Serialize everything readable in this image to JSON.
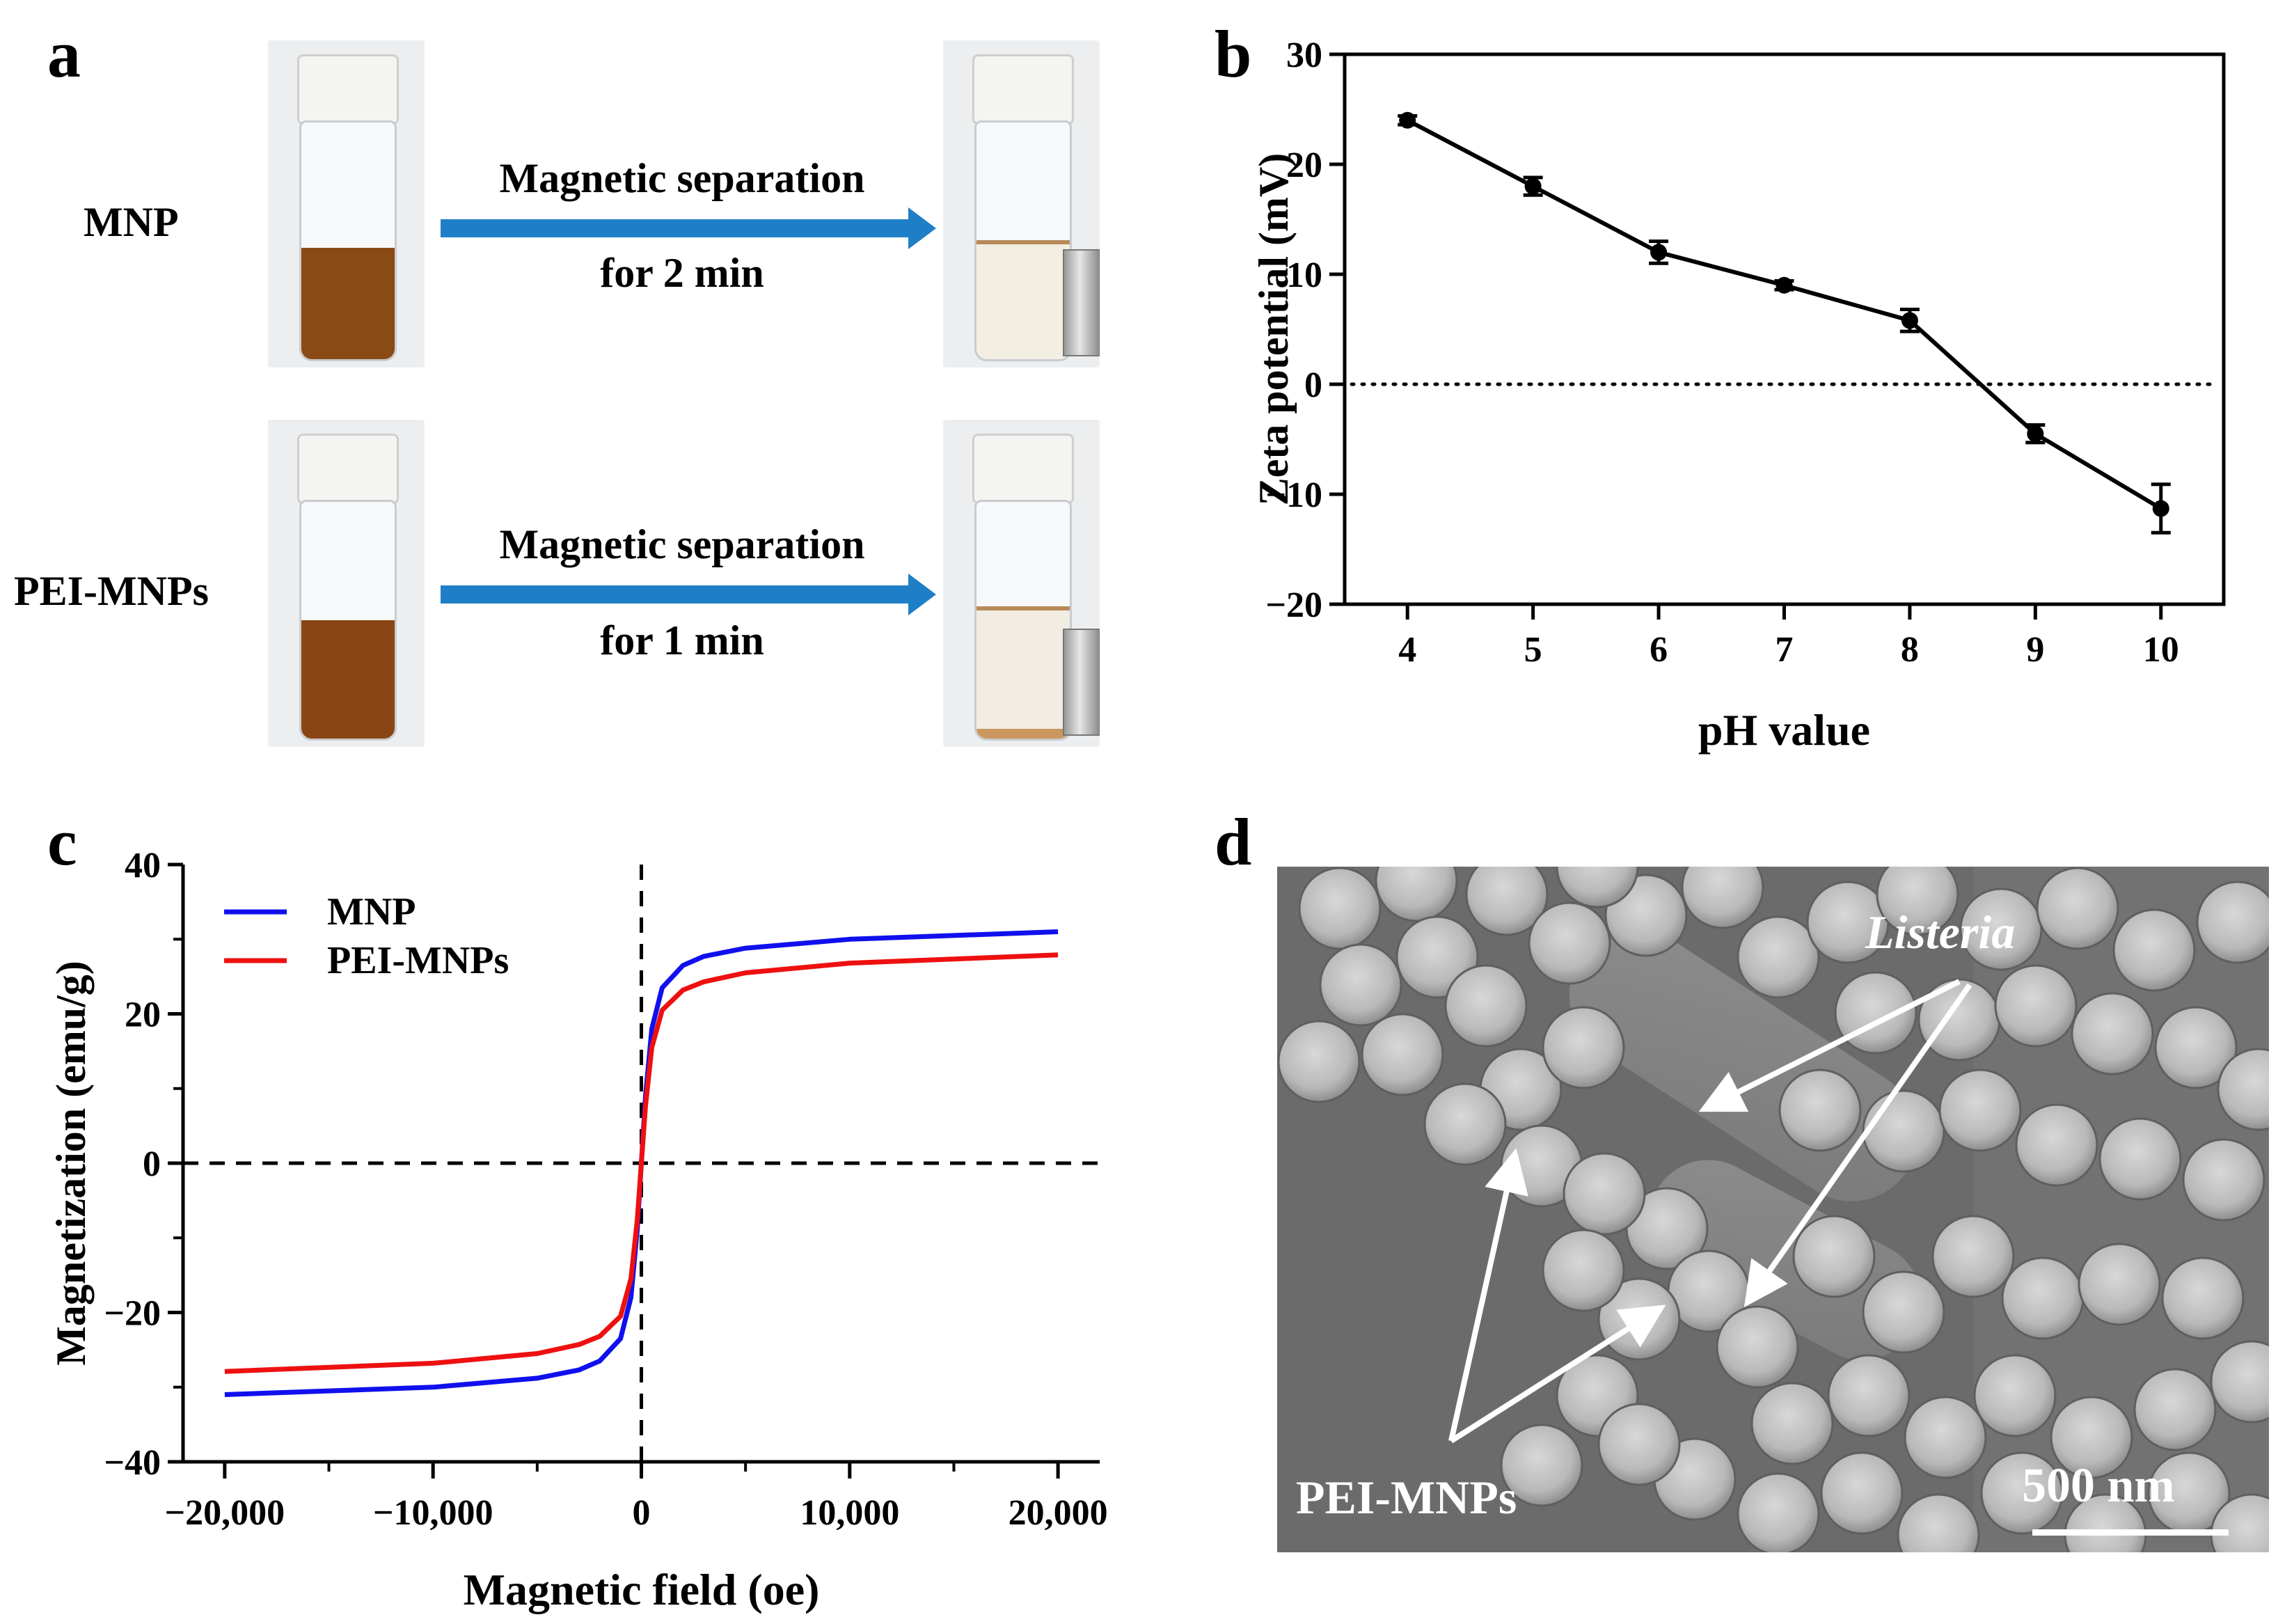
{
  "panels": {
    "a": {
      "letter": "a",
      "rows": [
        {
          "sample": "MNP",
          "step": "Magnetic separation",
          "duration": "for 2 min"
        },
        {
          "sample": "PEI-MNPs",
          "step": "Magnetic separation",
          "duration": "for 1 min"
        }
      ],
      "colors": {
        "arrow": "#1f7fc6",
        "suspension": "#8a4a16"
      }
    },
    "b": {
      "letter": "b"
    },
    "c": {
      "letter": "c"
    },
    "d": {
      "letter": "d",
      "label_listeria": "Listeria",
      "label_mnps": "PEI-MNPs",
      "scale_bar": "500 nm"
    }
  },
  "chart_data": [
    {
      "id": "b",
      "type": "line",
      "xlabel": "pH value",
      "ylabel": "Zeta potential (mV)",
      "x": [
        4,
        5,
        6,
        7,
        8,
        9,
        10
      ],
      "series": [
        {
          "values": [
            24,
            18,
            12,
            9,
            5.8,
            -4.5,
            -11.3
          ],
          "errors": [
            0.4,
            0.8,
            1.0,
            0.4,
            1.0,
            0.8,
            2.2
          ],
          "color": "#000000"
        }
      ],
      "xticks": [
        4,
        5,
        6,
        7,
        8,
        9,
        10
      ],
      "yticks": [
        -20,
        -10,
        0,
        10,
        20,
        30
      ],
      "xlim": [
        3.5,
        10.5
      ],
      "ylim": [
        -20,
        30
      ],
      "reference_line": {
        "y": 0,
        "style": "dotted"
      },
      "grid": false
    },
    {
      "id": "c",
      "type": "line",
      "xlabel": "Magnetic field (oe)",
      "ylabel": "Magnetization (emu/g)",
      "xticks": [
        -20000,
        -10000,
        0,
        10000,
        20000
      ],
      "xtick_labels": [
        "−20,000",
        "−10,000",
        "0",
        "10,000",
        "20,000"
      ],
      "yticks": [
        -40,
        -20,
        0,
        20,
        40
      ],
      "ytick_labels": [
        "−40",
        "−20",
        "0",
        "20",
        "40"
      ],
      "xlim": [
        -22000,
        22000
      ],
      "ylim": [
        -40,
        40
      ],
      "legend": "top-left",
      "reference_lines": {
        "x": 0,
        "y": 0,
        "style": "dashed"
      },
      "grid": false,
      "x": [
        -20000,
        -10000,
        -5000,
        -3000,
        -2000,
        -1000,
        -500,
        -200,
        0,
        200,
        500,
        1000,
        2000,
        3000,
        5000,
        10000,
        20000
      ],
      "series": [
        {
          "name": "MNP",
          "color": "#1010ee",
          "values": [
            -31,
            -30,
            -28.8,
            -27.7,
            -26.5,
            -23.5,
            -18,
            -9,
            0,
            9,
            18,
            23.5,
            26.5,
            27.7,
            28.8,
            30,
            31
          ]
        },
        {
          "name": "PEI-MNPs",
          "color": "#ee1010",
          "values": [
            -27.9,
            -26.8,
            -25.5,
            -24.3,
            -23.2,
            -20.5,
            -15.5,
            -7.7,
            0,
            7.7,
            15.5,
            20.5,
            23.2,
            24.3,
            25.5,
            26.8,
            27.9
          ]
        }
      ]
    }
  ]
}
